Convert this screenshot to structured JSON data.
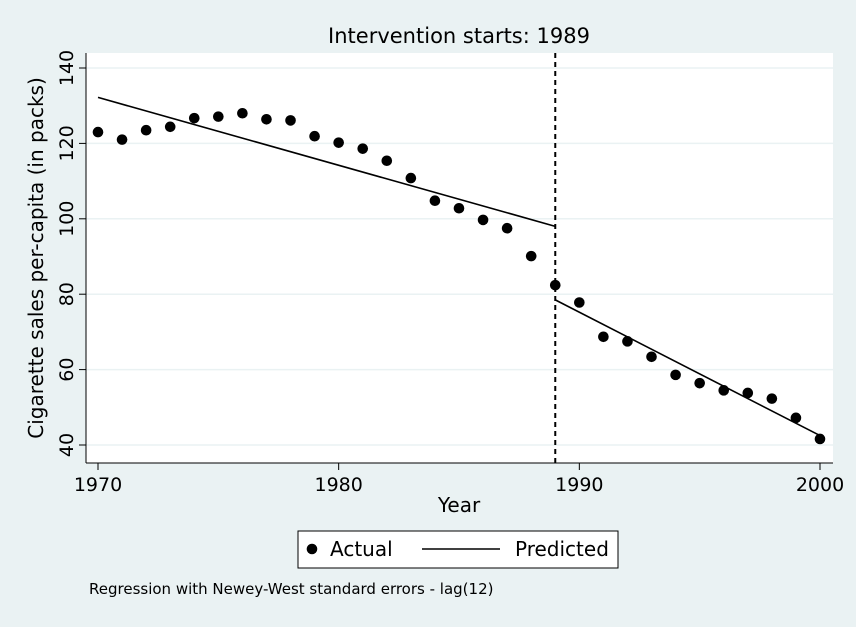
{
  "chart_data": {
    "type": "scatter",
    "title": "Intervention starts: 1989",
    "xlabel": "Year",
    "ylabel": "Cigarette sales per-capita (in packs)",
    "xlim": [
      1970,
      2000
    ],
    "ylim": [
      40,
      140
    ],
    "xticks": [
      1970,
      1980,
      1990,
      2000
    ],
    "yticks": [
      40,
      60,
      80,
      100,
      120,
      140
    ],
    "grid": true,
    "intervention_x": 1989,
    "legend_position": "bottom",
    "note": "Regression with Newey-West standard errors - lag(12)",
    "series": [
      {
        "name": "Actual",
        "type": "scatter",
        "x": [
          1970,
          1971,
          1972,
          1973,
          1974,
          1975,
          1976,
          1977,
          1978,
          1979,
          1980,
          1981,
          1982,
          1983,
          1984,
          1985,
          1986,
          1987,
          1988,
          1989,
          1990,
          1991,
          1992,
          1993,
          1994,
          1995,
          1996,
          1997,
          1998,
          1999,
          2000
        ],
        "y": [
          123.0,
          121.0,
          123.5,
          124.4,
          126.7,
          127.1,
          128.0,
          126.4,
          126.1,
          121.9,
          120.2,
          118.6,
          115.4,
          110.8,
          104.8,
          102.8,
          99.7,
          97.5,
          90.1,
          82.4,
          77.8,
          68.7,
          67.5,
          63.4,
          58.6,
          56.4,
          54.5,
          53.8,
          52.3,
          47.2,
          41.6
        ]
      },
      {
        "name": "Predicted",
        "type": "line",
        "segments": [
          {
            "x": [
              1970,
              1989
            ],
            "y": [
              132.2,
              98.0
            ]
          },
          {
            "x": [
              1989,
              2000
            ],
            "y": [
              78.5,
              42.5
            ]
          }
        ]
      }
    ]
  }
}
